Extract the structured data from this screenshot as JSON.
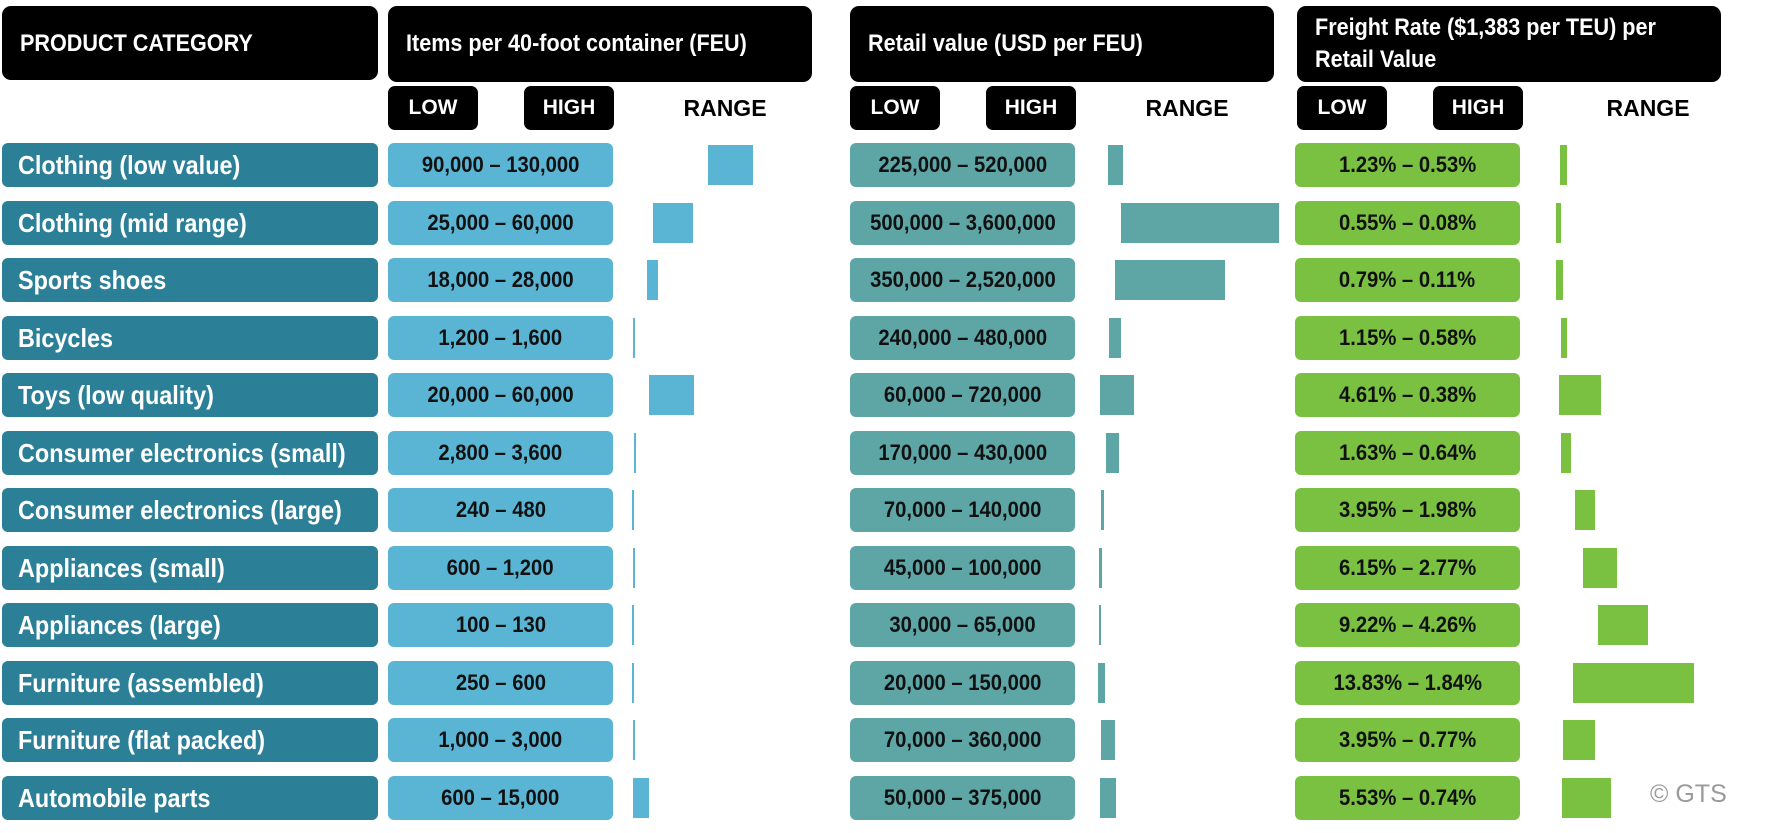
{
  "headers": {
    "category": "PRODUCT CATEGORY",
    "items": "Items per 40-foot container (FEU)",
    "retail": "Retail value (USD per FEU)",
    "freight": "Freight Rate ($1,383 per TEU) per Retail Value"
  },
  "subheaders": {
    "low": "LOW",
    "high": "HIGH",
    "range": "RANGE"
  },
  "credit": "© GTS",
  "colors": {
    "category": "#2b7f97",
    "items": "#5ab4d4",
    "retail": "#5ea5a6",
    "freight": "#7ac142"
  },
  "chart_data": {
    "type": "table",
    "columns": [
      "PRODUCT CATEGORY",
      "Items per 40-foot container (FEU)",
      "Retail value (USD per FEU)",
      "Freight Rate ($1,383 per TEU) per Retail Value"
    ],
    "rows": [
      {
        "category": "Clothing (low value)",
        "items_label": "90,000 – 130,000",
        "items_low": 90000,
        "items_high": 130000,
        "retail_label": "225,000 – 520,000",
        "retail_low": 225000,
        "retail_high": 520000,
        "freight_label": "1.23% – 0.53%",
        "freight_a": 1.23,
        "freight_b": 0.53
      },
      {
        "category": "Clothing (mid range)",
        "items_label": "25,000 – 60,000",
        "items_low": 25000,
        "items_high": 60000,
        "retail_label": "500,000 – 3,600,000",
        "retail_low": 500000,
        "retail_high": 3600000,
        "freight_label": "0.55% – 0.08%",
        "freight_a": 0.55,
        "freight_b": 0.08
      },
      {
        "category": "Sports shoes",
        "items_label": "18,000 – 28,000",
        "items_low": 18000,
        "items_high": 28000,
        "retail_label": "350,000 – 2,520,000",
        "retail_low": 350000,
        "retail_high": 2520000,
        "freight_label": "0.79% – 0.11%",
        "freight_a": 0.79,
        "freight_b": 0.11
      },
      {
        "category": "Bicycles",
        "items_label": "1,200 – 1,600",
        "items_low": 1200,
        "items_high": 1600,
        "retail_label": "240,000 – 480,000",
        "retail_low": 240000,
        "retail_high": 480000,
        "freight_label": "1.15% – 0.58%",
        "freight_a": 1.15,
        "freight_b": 0.58
      },
      {
        "category": "Toys (low quality)",
        "items_label": "20,000 – 60,000",
        "items_low": 20000,
        "items_high": 60000,
        "retail_label": "60,000 – 720,000",
        "retail_low": 60000,
        "retail_high": 720000,
        "freight_label": "4.61% – 0.38%",
        "freight_a": 4.61,
        "freight_b": 0.38
      },
      {
        "category": "Consumer electronics (small)",
        "items_label": "2,800 – 3,600",
        "items_low": 2800,
        "items_high": 3600,
        "retail_label": "170,000 – 430,000",
        "retail_low": 170000,
        "retail_high": 430000,
        "freight_label": "1.63% – 0.64%",
        "freight_a": 1.63,
        "freight_b": 0.64
      },
      {
        "category": "Consumer electronics (large)",
        "items_label": "240 – 480",
        "items_low": 240,
        "items_high": 480,
        "retail_label": "70,000 – 140,000",
        "retail_low": 70000,
        "retail_high": 140000,
        "freight_label": "3.95% – 1.98%",
        "freight_a": 3.95,
        "freight_b": 1.98
      },
      {
        "category": "Appliances (small)",
        "items_label": "600 – 1,200",
        "items_low": 600,
        "items_high": 1200,
        "retail_label": "45,000 – 100,000",
        "retail_low": 45000,
        "retail_high": 100000,
        "freight_label": "6.15% – 2.77%",
        "freight_a": 6.15,
        "freight_b": 2.77
      },
      {
        "category": "Appliances (large)",
        "items_label": "100 – 130",
        "items_low": 100,
        "items_high": 130,
        "retail_label": "30,000 – 65,000",
        "retail_low": 30000,
        "retail_high": 65000,
        "freight_label": "9.22% – 4.26%",
        "freight_a": 9.22,
        "freight_b": 4.26
      },
      {
        "category": "Furniture (assembled)",
        "items_label": "250 – 600",
        "items_low": 250,
        "items_high": 600,
        "retail_label": "20,000 – 150,000",
        "retail_low": 20000,
        "retail_high": 150000,
        "freight_label": "13.83% – 1.84%",
        "freight_a": 13.83,
        "freight_b": 1.84
      },
      {
        "category": "Furniture (flat packed)",
        "items_label": "1,000 – 3,000",
        "items_low": 1000,
        "items_high": 3000,
        "retail_label": "70,000 – 360,000",
        "retail_low": 70000,
        "retail_high": 360000,
        "freight_label": "3.95% – 0.77%",
        "freight_a": 3.95,
        "freight_b": 0.77
      },
      {
        "category": "Automobile parts",
        "items_label": "600 – 15,000",
        "items_low": 600,
        "items_high": 15000,
        "retail_label": "50,000 – 375,000",
        "retail_low": 50000,
        "retail_high": 375000,
        "freight_label": "5.53% – 0.74%",
        "freight_a": 5.53,
        "freight_b": 0.74
      }
    ]
  }
}
